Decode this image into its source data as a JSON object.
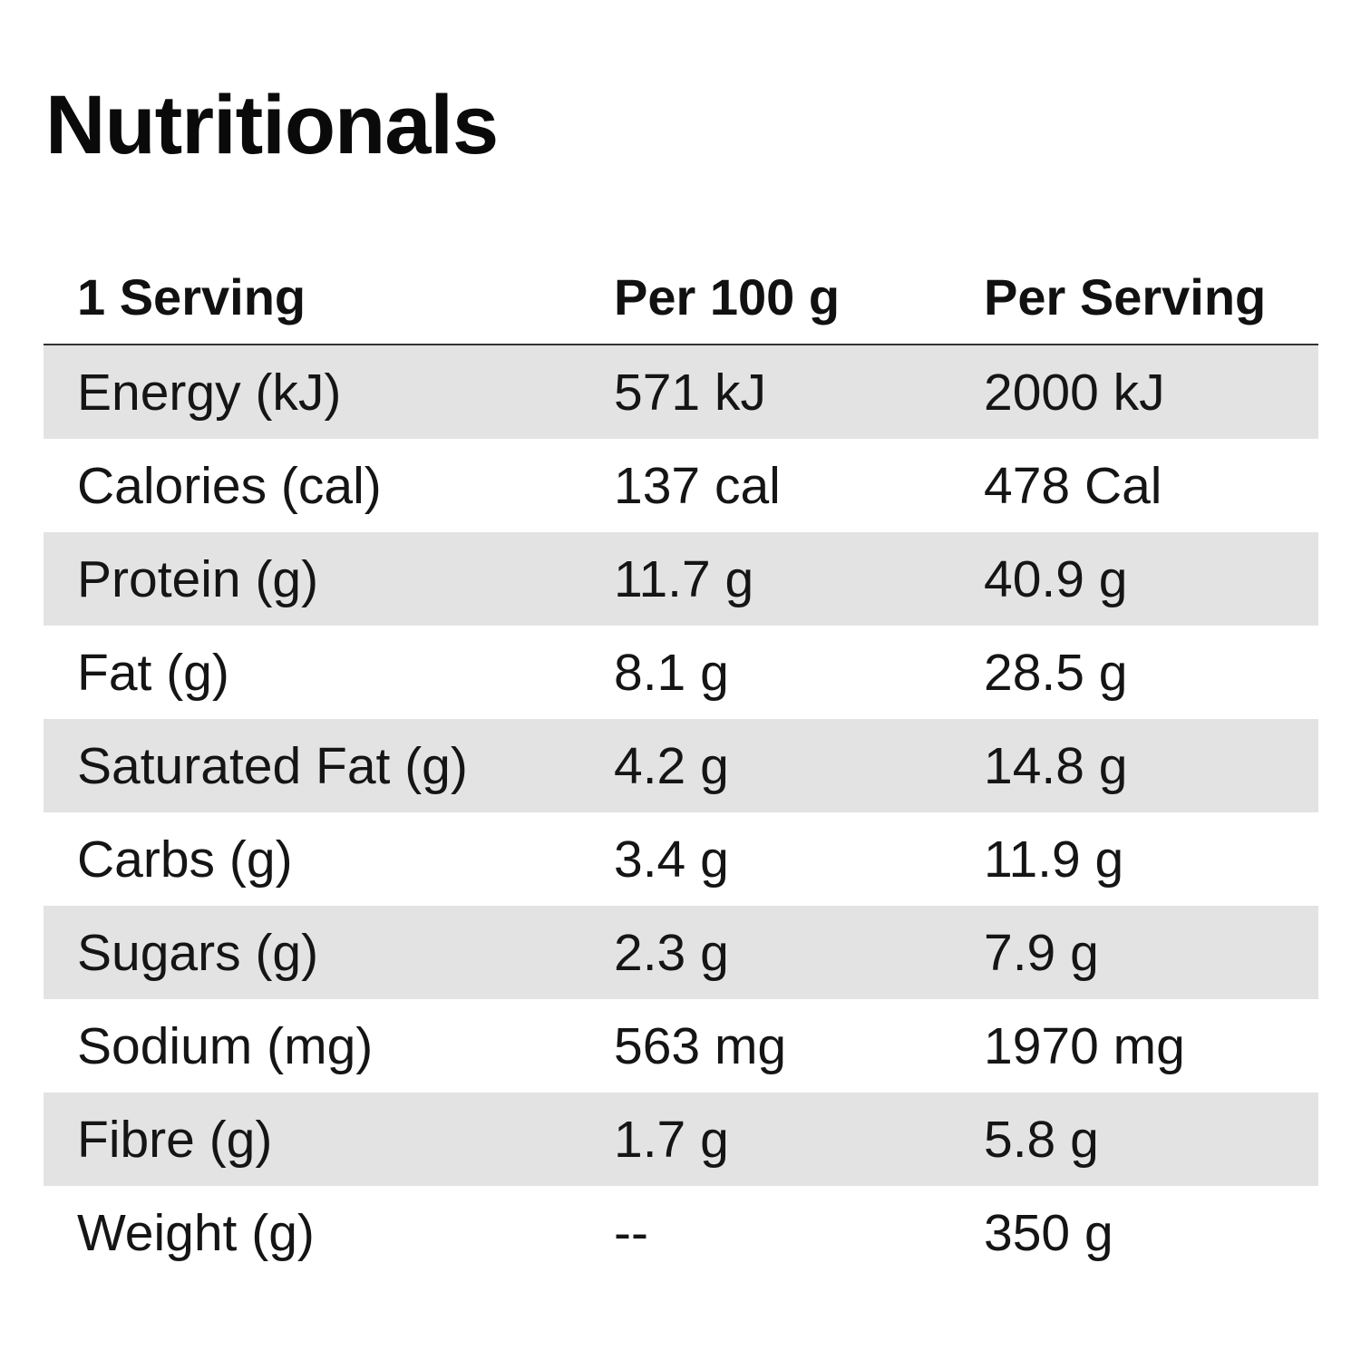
{
  "title": "Nutritionals",
  "table": {
    "headers": [
      "1 Serving",
      "Per 100 g",
      "Per Serving"
    ],
    "rows": [
      {
        "nutrient": "Energy (kJ)",
        "per_100g": "571 kJ",
        "per_serving": "2000 kJ"
      },
      {
        "nutrient": "Calories (cal)",
        "per_100g": "137 cal",
        "per_serving": "478 Cal"
      },
      {
        "nutrient": "Protein (g)",
        "per_100g": "11.7 g",
        "per_serving": "40.9 g"
      },
      {
        "nutrient": "Fat (g)",
        "per_100g": "8.1 g",
        "per_serving": "28.5 g"
      },
      {
        "nutrient": "Saturated Fat (g)",
        "per_100g": "4.2 g",
        "per_serving": "14.8 g"
      },
      {
        "nutrient": "Carbs (g)",
        "per_100g": "3.4 g",
        "per_serving": "11.9 g"
      },
      {
        "nutrient": "Sugars (g)",
        "per_100g": "2.3 g",
        "per_serving": "7.9 g"
      },
      {
        "nutrient": "Sodium (mg)",
        "per_100g": "563 mg",
        "per_serving": "1970 mg"
      },
      {
        "nutrient": "Fibre (g)",
        "per_100g": "1.7 g",
        "per_serving": "5.8 g"
      },
      {
        "nutrient": "Weight (g)",
        "per_100g": "--",
        "per_serving": "350 g"
      }
    ]
  },
  "colors": {
    "shaded_row": "#e3e3e3",
    "text": "#111111",
    "divider": "#333333"
  }
}
